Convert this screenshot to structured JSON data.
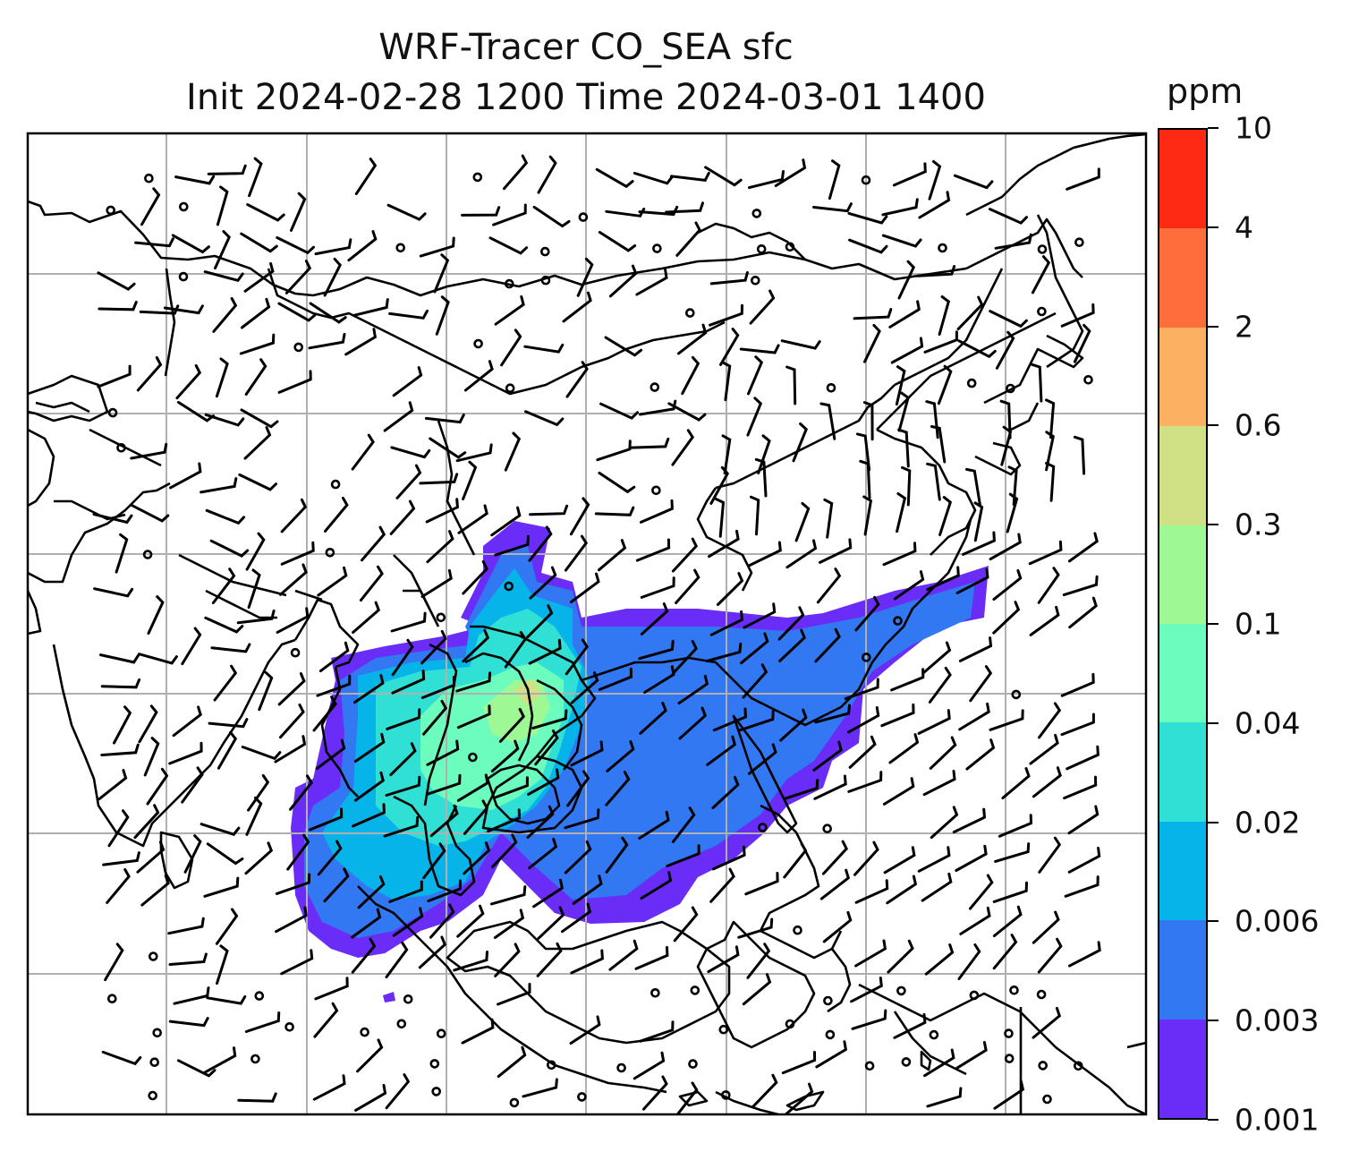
{
  "title": {
    "line1": "WRF-Tracer CO_SEA sfc",
    "line2": "Init 2024-02-28 1200 Time 2024-03-01 1400"
  },
  "colorbar": {
    "unit": "ppm",
    "ticks": [
      "0.001",
      "0.003",
      "0.006",
      "0.02",
      "0.04",
      "0.1",
      "0.3",
      "0.6",
      "2",
      "4",
      "10"
    ],
    "colors": [
      "#6a2cf7",
      "#3278f2",
      "#06b4ea",
      "#30e0d4",
      "#6cfcbe",
      "#9ef894",
      "#d0e084",
      "#fcb062",
      "#fe6e3c",
      "#fe2a14"
    ]
  },
  "plume_colors": {
    "low": "#6a2cf7",
    "mid": "#3278f2",
    "cyan": "#06b4ea",
    "teal": "#30e0d4",
    "green": "#6cfcbe",
    "light": "#9ef894",
    "yellow": "#d0e084"
  },
  "map": {
    "features": [
      "gridlines",
      "coastlines",
      "country-borders",
      "wind-barbs",
      "calm-wind-circles"
    ]
  }
}
